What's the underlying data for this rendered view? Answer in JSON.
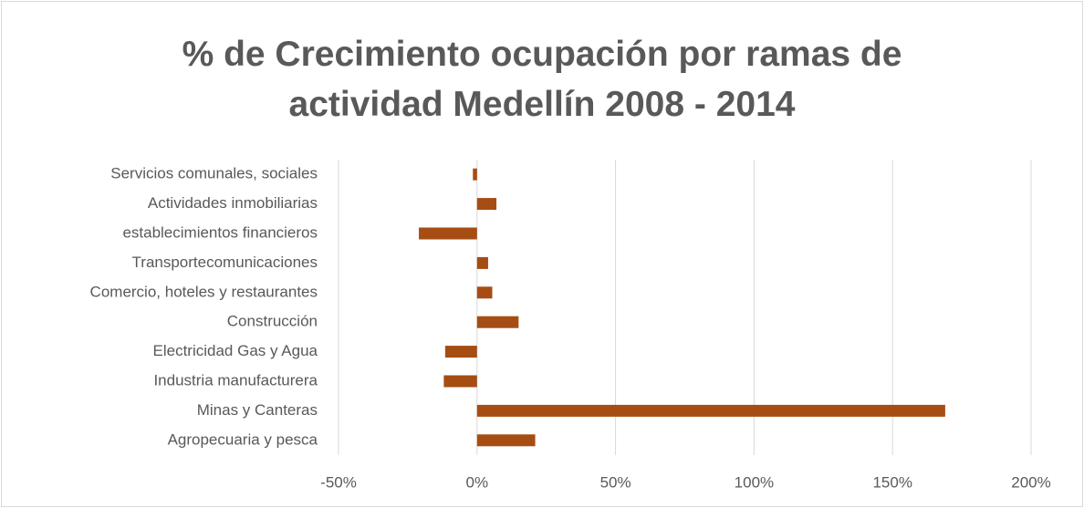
{
  "chart_data": {
    "type": "barh",
    "title": "% de Crecimiento ocupación por ramas de actividad Medellín 2008 - 2014",
    "categories": [
      "Agropecuaria y pesca",
      "Minas y Canteras",
      "Industria manufacturera",
      "Electricidad Gas y Agua",
      "Construcción",
      "Comercio, hoteles y restaurantes",
      "Transportecomunicaciones",
      "establecimientos financieros",
      "Actividades inmobiliarias",
      "Servicios comunales, sociales"
    ],
    "values": [
      21,
      169,
      -12,
      -11.5,
      15,
      5.5,
      4,
      -21,
      7,
      -1.5
    ],
    "color": "#a64d14",
    "xlim": [
      -50,
      200
    ],
    "xticks": [
      {
        "value": -50,
        "label": "-50%"
      },
      {
        "value": 0,
        "label": "0%"
      },
      {
        "value": 50,
        "label": "50%"
      },
      {
        "value": 100,
        "label": "100%"
      },
      {
        "value": 150,
        "label": "150%"
      },
      {
        "value": 200,
        "label": "200%"
      }
    ],
    "grid": true
  }
}
